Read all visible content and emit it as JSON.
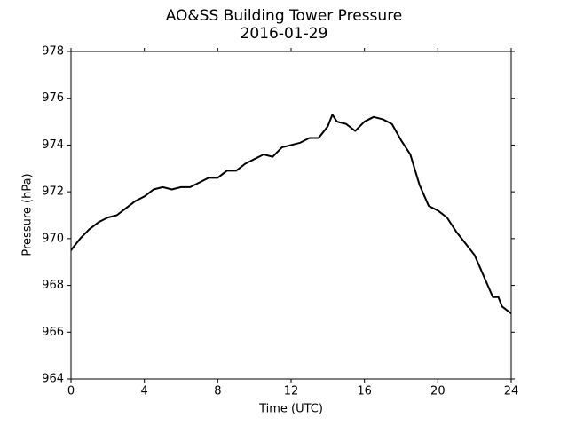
{
  "chart_data": {
    "type": "line",
    "title": "AO&SS Building Tower Pressure",
    "subtitle": "2016-01-29",
    "xlabel": "Time (UTC)",
    "ylabel": "Pressure (hPa)",
    "x": [
      0,
      0.5,
      1,
      1.5,
      2,
      2.5,
      3,
      3.5,
      4,
      4.5,
      5,
      5.5,
      6,
      6.5,
      7,
      7.5,
      8,
      8.5,
      9,
      9.5,
      10,
      10.5,
      11,
      11.5,
      12,
      12.5,
      13,
      13.5,
      14,
      14.25,
      14.5,
      15,
      15.5,
      16,
      16.5,
      17,
      17.5,
      18,
      18.5,
      19,
      19.5,
      20,
      20.5,
      21,
      21.5,
      22,
      22.5,
      23,
      23.3,
      23.5,
      24
    ],
    "series": [
      {
        "name": "Pressure",
        "color": "#000000",
        "values": [
          969.5,
          970.0,
          970.4,
          970.7,
          970.9,
          971.0,
          971.3,
          971.6,
          971.8,
          972.1,
          972.2,
          972.1,
          972.2,
          972.2,
          972.4,
          972.6,
          972.6,
          972.9,
          972.9,
          973.2,
          973.4,
          973.6,
          973.5,
          973.9,
          974.0,
          974.1,
          974.3,
          974.3,
          974.8,
          975.3,
          975.0,
          974.9,
          974.6,
          975.0,
          975.2,
          975.1,
          974.9,
          974.2,
          973.6,
          972.3,
          971.4,
          971.2,
          970.9,
          970.3,
          969.8,
          969.3,
          968.4,
          967.5,
          967.5,
          967.1,
          966.8
        ]
      }
    ],
    "xlim": [
      0,
      24
    ],
    "xticks": [
      0,
      4,
      8,
      12,
      16,
      20,
      24
    ],
    "ylim": [
      964,
      978
    ],
    "yticks": [
      964,
      966,
      968,
      970,
      972,
      974,
      976,
      978
    ]
  }
}
